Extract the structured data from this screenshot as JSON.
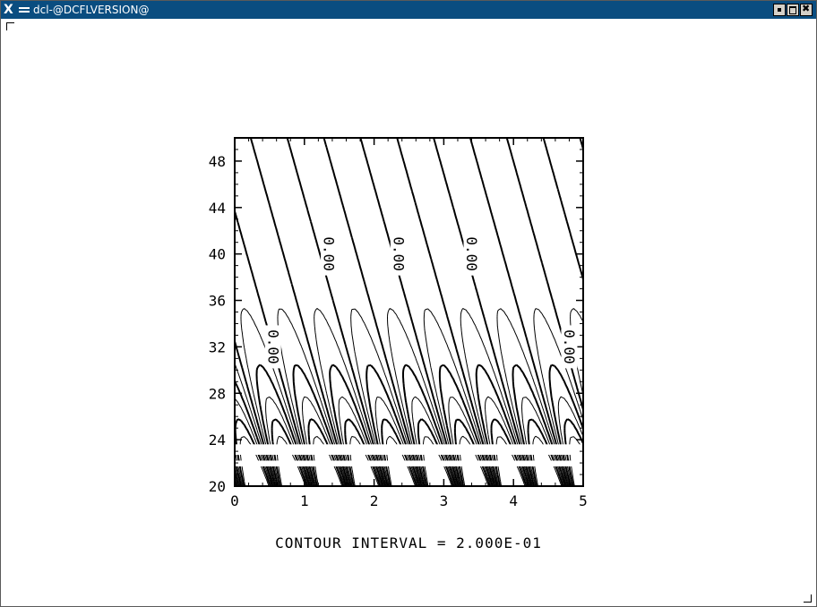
{
  "window": {
    "title": "dcl-@DCFLVERSION@"
  },
  "chart_data": {
    "type": "contour",
    "x": {
      "range": [
        0,
        5
      ],
      "ticks": [
        "0",
        "1",
        "2",
        "3",
        "4",
        "5"
      ]
    },
    "y": {
      "range": [
        20,
        50
      ],
      "ticks": [
        "20",
        "24",
        "28",
        "32",
        "36",
        "40",
        "44",
        "48"
      ]
    },
    "contour_labels": [
      {
        "text": "0.00",
        "x": 0.55,
        "y": 32.0
      },
      {
        "text": "0.00",
        "x": 1.35,
        "y": 40.0
      },
      {
        "text": "0.00",
        "x": 2.35,
        "y": 40.0
      },
      {
        "text": "0.00",
        "x": 3.4,
        "y": 40.0
      },
      {
        "text": "0.00",
        "x": 4.8,
        "y": 32.0
      }
    ],
    "footer": "CONTOUR  INTERVAL = 2.000E-01",
    "colors": {
      "line": "#000000",
      "background": "#ffffff"
    }
  }
}
